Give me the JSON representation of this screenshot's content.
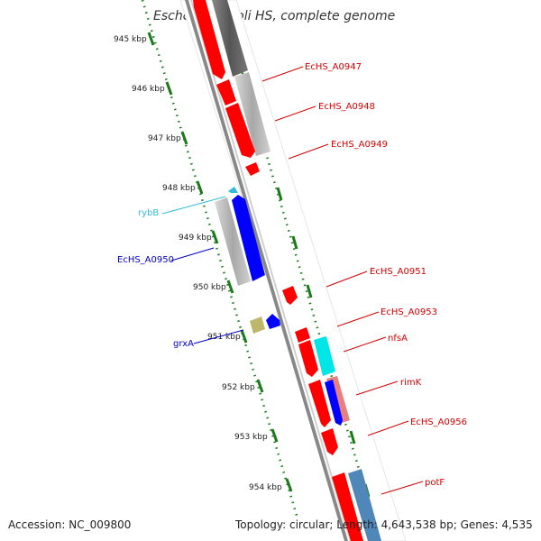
{
  "title": "Escherichia coli HS, complete genome",
  "footer": {
    "accession_label": "Accession:",
    "accession": "NC_009800",
    "topology_label": "Topology:",
    "topology": "circular",
    "length_label": "Length:",
    "length": "4,643,538 bp",
    "genes_label": "Genes:",
    "genes": "4,535"
  },
  "scale_ticks": [
    "945 kbp",
    "946 kbp",
    "947 kbp",
    "948 kbp",
    "949 kbp",
    "950 kbp",
    "951 kbp",
    "952 kbp",
    "953 kbp",
    "954 kbp"
  ],
  "gene_labels": [
    {
      "name": "EcHS_A0947",
      "color": "#d40000"
    },
    {
      "name": "EcHS_A0948",
      "color": "#d40000"
    },
    {
      "name": "EcHS_A0949",
      "color": "#d40000"
    },
    {
      "name": "rybB",
      "color": "#33bbdd"
    },
    {
      "name": "EcHS_A0950",
      "color": "#0000cc"
    },
    {
      "name": "EcHS_A0951",
      "color": "#d40000"
    },
    {
      "name": "EcHS_A0953",
      "color": "#d40000"
    },
    {
      "name": "nfsA",
      "color": "#d40000"
    },
    {
      "name": "grxA",
      "color": "#0000cc"
    },
    {
      "name": "rimK",
      "color": "#d40000"
    },
    {
      "name": "EcHS_A0956",
      "color": "#d40000"
    },
    {
      "name": "potF",
      "color": "#d40000"
    }
  ],
  "colors": {
    "forward_cds": "#ff0000",
    "reverse_cds": "#0000ff",
    "orf_gray": "#b0b0b0",
    "ncrna": "#33bbdd",
    "rna_cyan": "#00e5e5",
    "misc_khaki": "#bdb76b",
    "steel_blue": "#4f88b8",
    "pink": "#e88080",
    "tick_green": "#1a7a1a"
  }
}
